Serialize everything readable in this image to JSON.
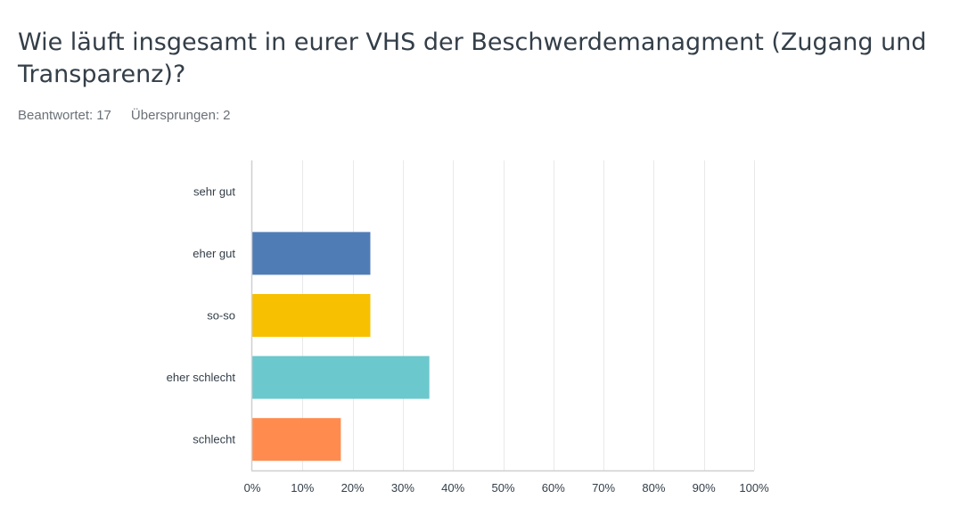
{
  "question": {
    "title": "Wie läuft insgesamt in eurer VHS der Beschwerdemanagment (Zugang und Transparenz)?",
    "answered_label": "Beantwortet:",
    "answered_value": "17",
    "skipped_label": "Übersprungen:",
    "skipped_value": "2"
  },
  "chart_data": {
    "type": "bar",
    "orientation": "horizontal",
    "categories": [
      "sehr gut",
      "eher gut",
      "so-so",
      "eher schlecht",
      "schlecht"
    ],
    "values": [
      0,
      23.53,
      23.53,
      35.29,
      17.65
    ],
    "colors": [
      "#8b6cb3",
      "#507cb6",
      "#f7c000",
      "#6bc8cd",
      "#ff8b4f"
    ],
    "xlim": [
      0,
      100
    ],
    "xticks": [
      0,
      10,
      20,
      30,
      40,
      50,
      60,
      70,
      80,
      90,
      100
    ],
    "xtick_labels": [
      "0%",
      "10%",
      "20%",
      "30%",
      "40%",
      "50%",
      "60%",
      "70%",
      "80%",
      "90%",
      "100%"
    ],
    "grid": true,
    "legend": "none"
  }
}
